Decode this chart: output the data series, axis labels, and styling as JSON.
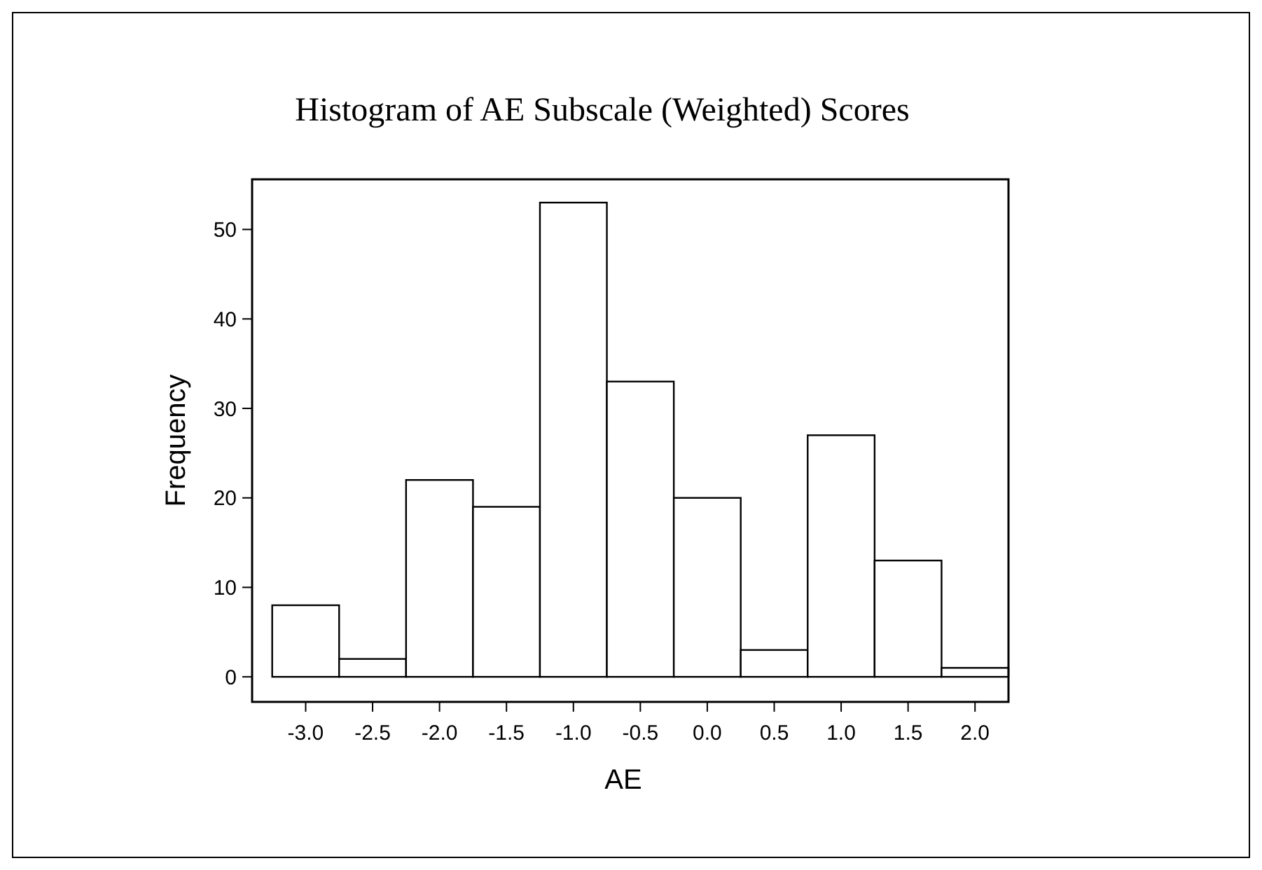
{
  "chart_data": {
    "type": "histogram",
    "title": "Histogram of AE Subscale (Weighted) Scores",
    "xlabel": "AE",
    "ylabel": "Frequency",
    "bins": [
      -3.25,
      -2.75,
      -2.25,
      -1.75,
      -1.25,
      -0.75,
      -0.25,
      0.25,
      0.75,
      1.25,
      1.75,
      2.25
    ],
    "values": [
      8,
      2,
      22,
      19,
      53,
      33,
      20,
      3,
      27,
      13,
      1
    ],
    "color": "#ffffff",
    "xlim": [
      -3.4,
      2.25
    ],
    "ylim": [
      -2.8,
      55.6
    ],
    "xticks": [
      {
        "value": -3,
        "label": "-3.0"
      },
      {
        "value": -2.5,
        "label": "-2.5"
      },
      {
        "value": -2,
        "label": "-2.0"
      },
      {
        "value": -1.5,
        "label": "-1.5"
      },
      {
        "value": -1,
        "label": "-1.0"
      },
      {
        "value": -0.5,
        "label": "-0.5"
      },
      {
        "value": 0,
        "label": "0.0"
      },
      {
        "value": 0.5,
        "label": "0.5"
      },
      {
        "value": 1,
        "label": "1.0"
      },
      {
        "value": 1.5,
        "label": "1.5"
      },
      {
        "value": 2,
        "label": "2.0"
      }
    ],
    "yticks": [
      0,
      10,
      20,
      30,
      40,
      50
    ],
    "grid": false
  }
}
